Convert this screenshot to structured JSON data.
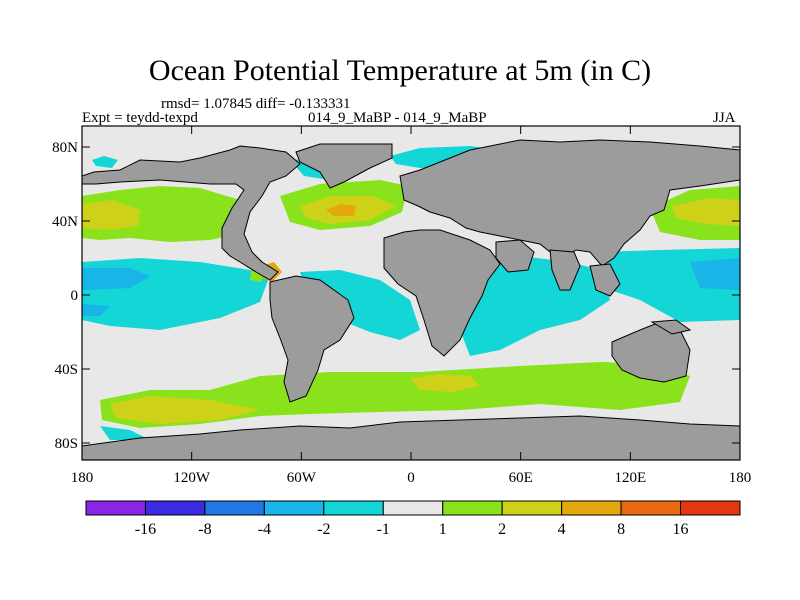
{
  "title": "Ocean Potential Temperature at 5m (in C)",
  "stats": "rmsd= 1.07845 diff= -0.133331",
  "expt": "Expt = teydd-texpd",
  "cases": "014_9_MaBP - 014_9_MaBP",
  "season": "JJA",
  "lat_labels": [
    "80N",
    "40N",
    "0",
    "40S",
    "80S"
  ],
  "lon_labels": [
    "180",
    "120W",
    "60W",
    "0",
    "60E",
    "120E",
    "180"
  ],
  "colorbar": {
    "labels": [
      "-16",
      "-8",
      "-4",
      "-2",
      "-1",
      "1",
      "2",
      "4",
      "8",
      "16"
    ],
    "colors": [
      "#8a24e6",
      "#3a2be0",
      "#1f78e6",
      "#19b4e8",
      "#14d6d6",
      "#e8e8e8",
      "#8ae21c",
      "#cdd219",
      "#e5a70e",
      "#e96a10",
      "#e43612"
    ]
  },
  "colors": {
    "land": "#9c9c9c",
    "ocean_neutral": "#e8e8e8",
    "cyan": "#14d6d6",
    "lightblue": "#19b4e8",
    "green": "#8ae21c",
    "yellow": "#cdd219",
    "orange": "#e5a70e"
  }
}
